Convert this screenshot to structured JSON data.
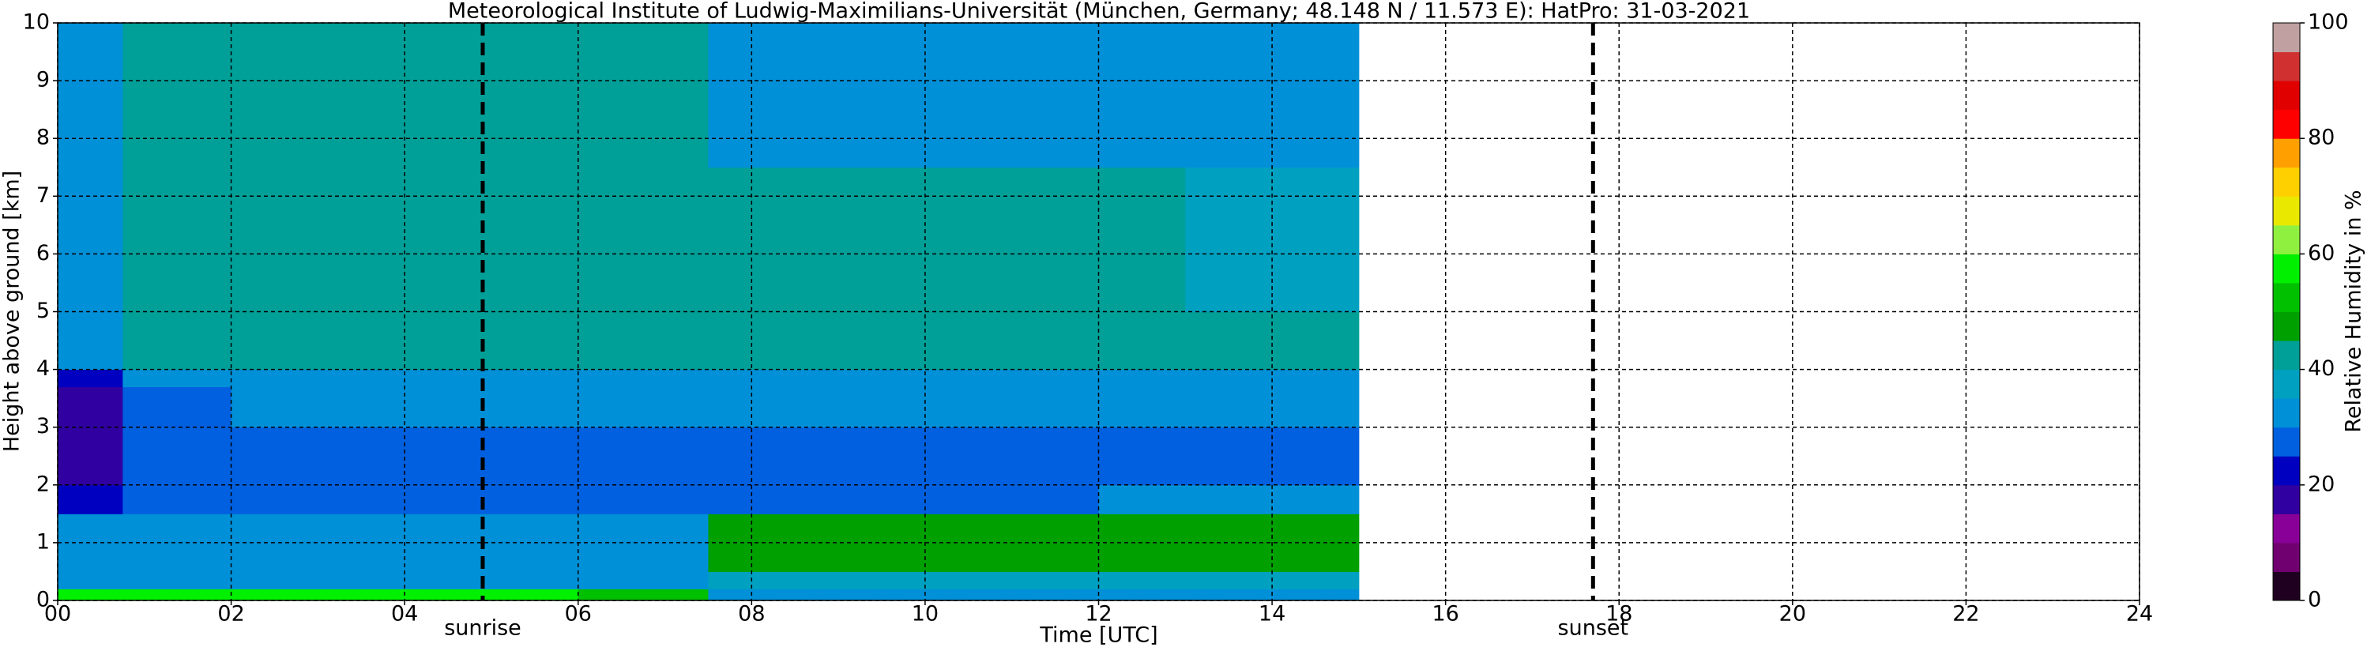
{
  "chart_data": {
    "type": "heatmap",
    "title": "Meteorological Institute of Ludwig-Maximilians-Universität (München, Germany; 48.148 N / 11.573 E):    HatPro: 31-03-2021",
    "x_label": "Time [UTC]",
    "y_label": "Height above ground [km]",
    "colorbar_label": "Relative Humidity in %",
    "xlim": [
      0,
      24
    ],
    "ylim": [
      0,
      10
    ],
    "xticks": [
      {
        "value": 0,
        "label": "00"
      },
      {
        "value": 2,
        "label": "02"
      },
      {
        "value": 4,
        "label": "04"
      },
      {
        "value": 6,
        "label": "06"
      },
      {
        "value": 8,
        "label": "08"
      },
      10,
      12,
      14,
      16,
      18,
      20,
      22,
      24
    ],
    "yticks": [
      0,
      1,
      2,
      3,
      4,
      5,
      6,
      7,
      8,
      9,
      10
    ],
    "grid": true,
    "clim": [
      0,
      100
    ],
    "cticks": [
      0,
      20,
      40,
      60,
      80,
      100
    ],
    "colors": [
      "#200020",
      "#700070",
      "#880098",
      "#3000a0",
      "#0000c0",
      "#0060e0",
      "#0090d8",
      "#00a0c0",
      "#00a098",
      "#00a000",
      "#00c000",
      "#00f000",
      "#90f040",
      "#e8e800",
      "#ffd000",
      "#ffa000",
      "#ff0000",
      "#e00000",
      "#d03030",
      "#c0a0a0"
    ],
    "x_edges": [
      0,
      0.75,
      2,
      4,
      5,
      6,
      7.5,
      10,
      12,
      13,
      15
    ],
    "y_edges": [
      0,
      0.2,
      0.5,
      1.5,
      2,
      3,
      3.7,
      4,
      5,
      7.5,
      10
    ],
    "values": [
      [
        55,
        55,
        55,
        55,
        55,
        52,
        32,
        32,
        32,
        32
      ],
      [
        30,
        31,
        31,
        31,
        31,
        31,
        36,
        36,
        36,
        36
      ],
      [
        30,
        31,
        31,
        31,
        31,
        31,
        46,
        46,
        46,
        47
      ],
      [
        22,
        27,
        27,
        27,
        28,
        28,
        29,
        29,
        30,
        32
      ],
      [
        15,
        25,
        25,
        25,
        26,
        26,
        26,
        26,
        27,
        28
      ],
      [
        18,
        29,
        30,
        30,
        30,
        30,
        31,
        31,
        31,
        32
      ],
      [
        20,
        32,
        33,
        33,
        33,
        33,
        33,
        33,
        33,
        33
      ],
      [
        31,
        40,
        41,
        41,
        41,
        41,
        40,
        40,
        40,
        40
      ],
      [
        33,
        41,
        41,
        42,
        42,
        42,
        40,
        40,
        40,
        38
      ],
      [
        32,
        40,
        40,
        40,
        40,
        40,
        33,
        33,
        33,
        32
      ]
    ],
    "annotations": [
      {
        "label": "sunrise",
        "x": 4.9
      },
      {
        "label": "sunset",
        "x": 17.7
      }
    ]
  }
}
